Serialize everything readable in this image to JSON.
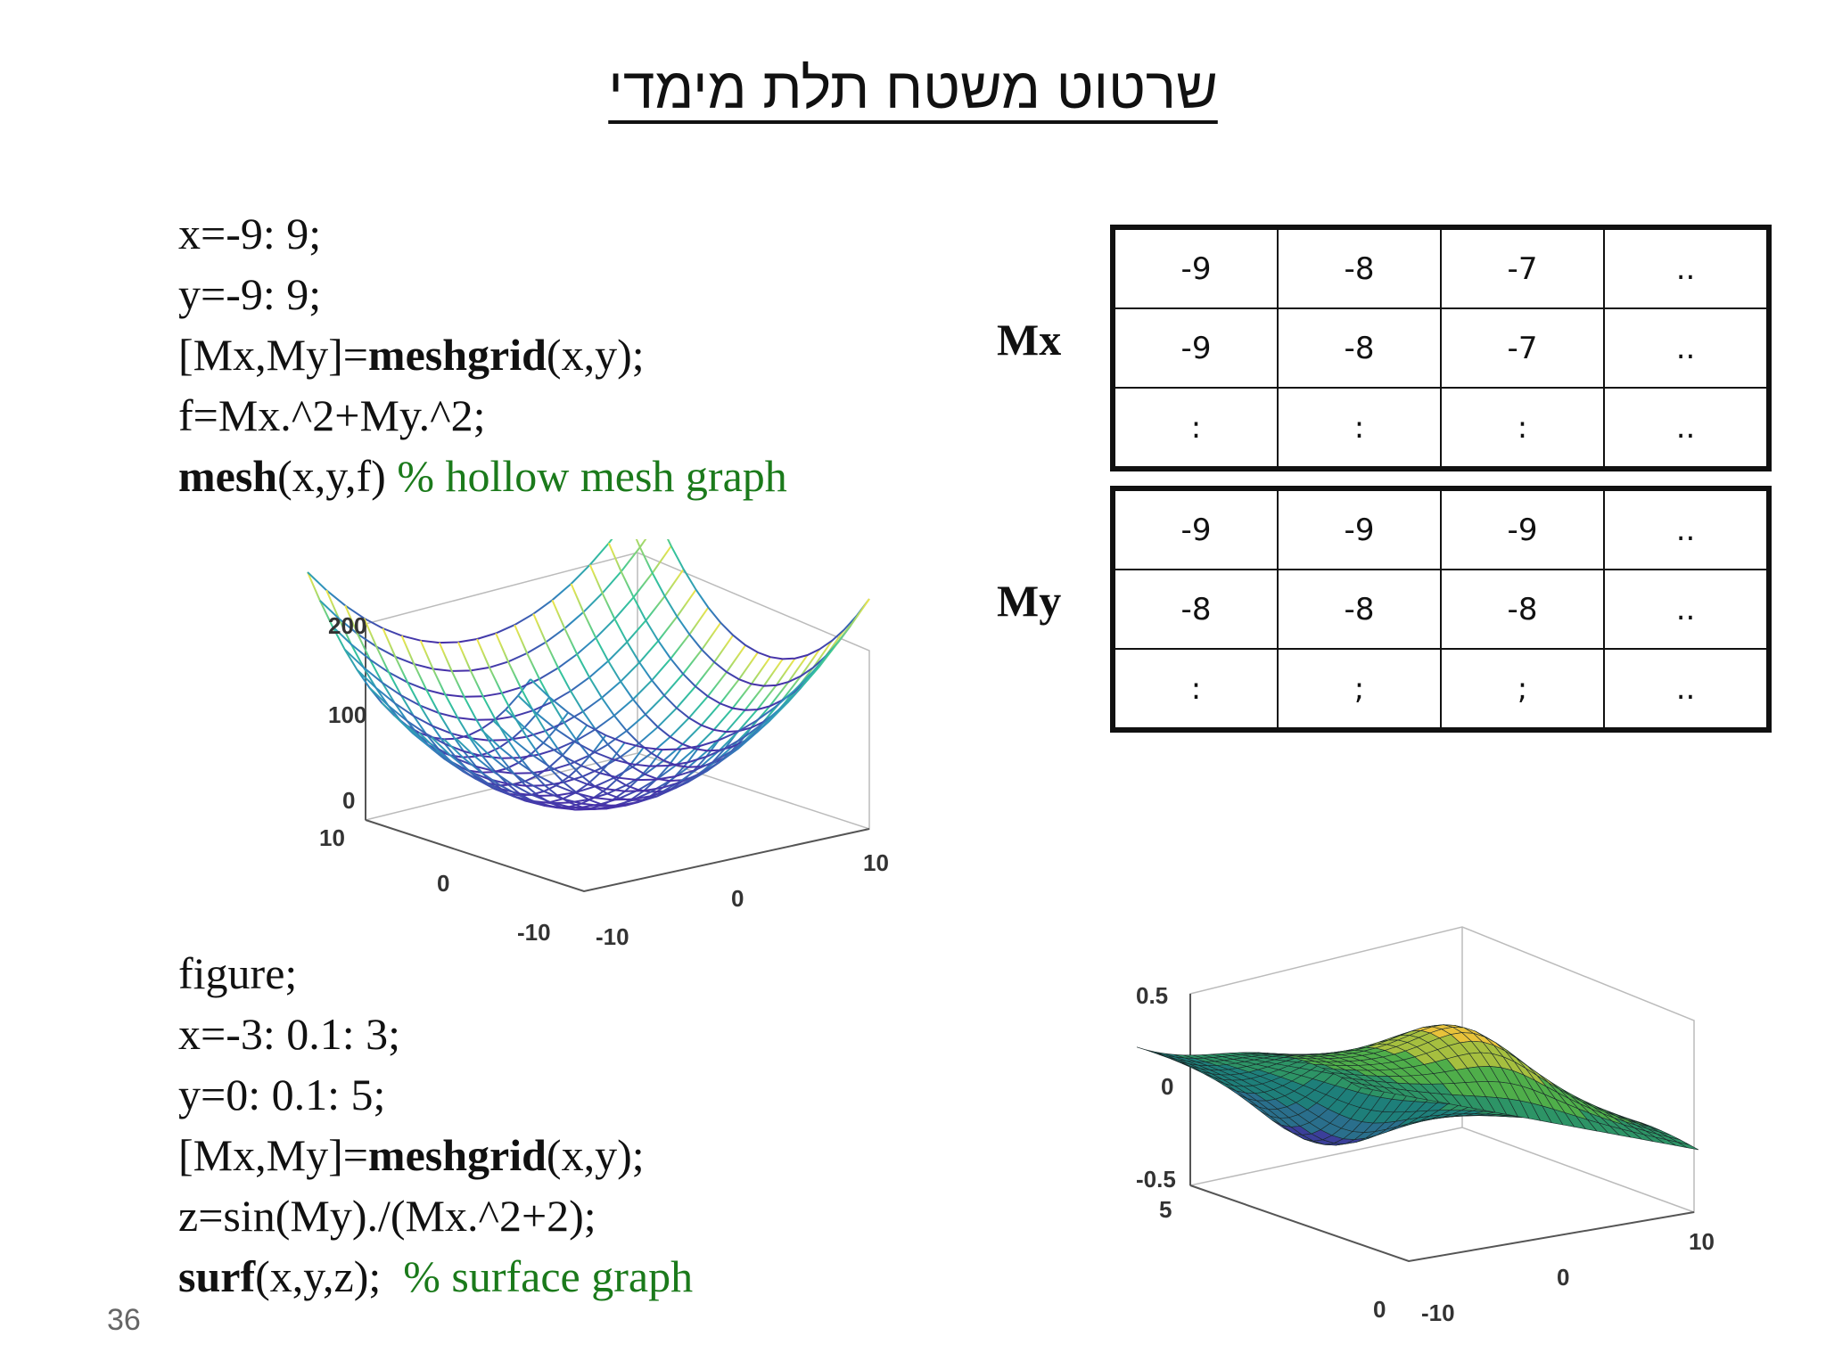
{
  "title": "שרטוט משטח תלת מימדי",
  "code_block_1": [
    [
      {
        "t": "x=-9: 9;",
        "s": "n"
      }
    ],
    [
      {
        "t": "y=-9: 9;",
        "s": "n"
      }
    ],
    [
      {
        "t": "[Mx,My]=",
        "s": "n"
      },
      {
        "t": "meshgrid",
        "s": "b"
      },
      {
        "t": "(x,y);",
        "s": "n"
      }
    ],
    [
      {
        "t": "f=Mx.^2+My.^2;",
        "s": "n"
      }
    ],
    [
      {
        "t": "mesh",
        "s": "b"
      },
      {
        "t": "(x,y,f) ",
        "s": "n"
      },
      {
        "t": "% hollow mesh graph",
        "s": "c"
      }
    ]
  ],
  "code_block_2": [
    [
      {
        "t": "figure;",
        "s": "n"
      }
    ],
    [
      {
        "t": "x=-3: 0.1: 3;",
        "s": "n"
      }
    ],
    [
      {
        "t": "y=0: 0.1: 5;",
        "s": "n"
      }
    ],
    [
      {
        "t": "[Mx,My]=",
        "s": "n"
      },
      {
        "t": "meshgrid",
        "s": "b"
      },
      {
        "t": "(x,y);",
        "s": "n"
      }
    ],
    [
      {
        "t": "z=sin(My)./(Mx.^2+2);",
        "s": "n"
      }
    ],
    [
      {
        "t": "surf",
        "s": "b"
      },
      {
        "t": "(x,y,z);  ",
        "s": "n"
      },
      {
        "t": "% surface graph",
        "s": "c"
      }
    ]
  ],
  "mesh_plot": {
    "z_ticks": [
      "200",
      "100",
      "0"
    ],
    "y_ticks": [
      "10",
      "0",
      "-10"
    ],
    "x_ticks": [
      "-10",
      "0",
      "10"
    ]
  },
  "surf_plot": {
    "z_ticks": [
      "0.5",
      "0",
      "-0.5"
    ],
    "y_ticks": [
      "5",
      "0"
    ],
    "x_ticks": [
      "-10",
      "0",
      "10"
    ]
  },
  "tables": {
    "mx_label": "Mx",
    "my_label": "My",
    "mx_rows": [
      [
        "-9",
        "-8",
        "-7",
        ".."
      ],
      [
        "-9",
        "-8",
        "-7",
        ".."
      ],
      [
        ":",
        ":",
        ":",
        ".."
      ]
    ],
    "my_rows": [
      [
        "-9",
        "-9",
        "-9",
        ".."
      ],
      [
        "-8",
        "-8",
        "-8",
        ".."
      ],
      [
        ":",
        ";",
        ";",
        ".."
      ]
    ]
  },
  "page_number": "36",
  "colors": {
    "comment": "#1b7a1b"
  }
}
